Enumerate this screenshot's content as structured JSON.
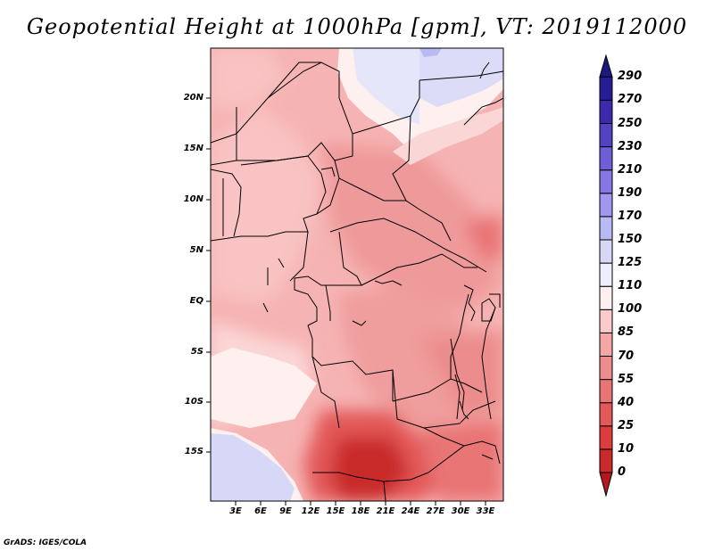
{
  "title": "Geopotential Height at 1000hPa [gpm], VT: 2019112000",
  "credit": "GrADS: IGES/COLA",
  "map": {
    "lat_labels": [
      "20N",
      "15N",
      "10N",
      "5N",
      "EQ",
      "5S",
      "10S",
      "15S"
    ],
    "lon_labels": [
      "3E",
      "6E",
      "9E",
      "12E",
      "15E",
      "18E",
      "21E",
      "24E",
      "27E",
      "30E",
      "33E"
    ]
  },
  "colorbar": {
    "levels": [
      "0",
      "10",
      "25",
      "40",
      "55",
      "70",
      "85",
      "100",
      "110",
      "125",
      "150",
      "170",
      "190",
      "210",
      "230",
      "250",
      "270",
      "290"
    ],
    "colors": [
      "#b3181e",
      "#c92a2a",
      "#dc3c3c",
      "#e35858",
      "#e97474",
      "#ec8c8c",
      "#f3a7a7",
      "#fbcaca",
      "#fff0f0",
      "#eeeeff",
      "#d7d7f8",
      "#b9b9f4",
      "#a196f0",
      "#8676e4",
      "#6e5ed8",
      "#5243c4",
      "#3a2aad",
      "#261c96",
      "#1a1a80"
    ]
  },
  "colors": {
    "deep_red": "#b3181e",
    "mid_red": "#e97474",
    "light_pink": "#fbcaca",
    "pale_blue": "#d7d7f8",
    "navy": "#1a1a80"
  }
}
